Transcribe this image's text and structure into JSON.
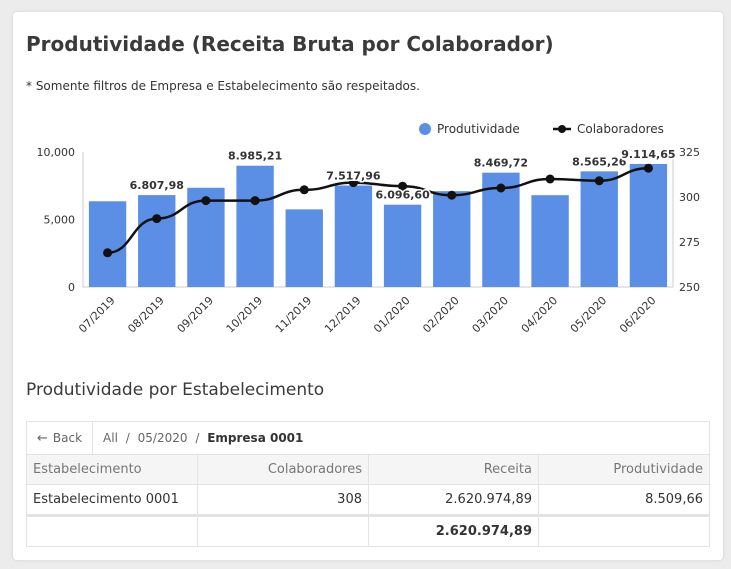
{
  "card": {
    "title": "Produtividade (Receita Bruta por Colaborador)",
    "note": "* Somente filtros de Empresa e Estabelecimento são respeitados."
  },
  "colors": {
    "bar": "#5B8FE6",
    "line": "#111111",
    "grid": "#e6e6e6",
    "axis": "#333333"
  },
  "chart_data": {
    "type": "bar",
    "categories": [
      "07/2019",
      "08/2019",
      "09/2019",
      "10/2019",
      "11/2019",
      "12/2019",
      "01/2020",
      "02/2020",
      "03/2020",
      "04/2020",
      "05/2020",
      "06/2020"
    ],
    "series": [
      {
        "name": "Produtividade",
        "type": "bar",
        "axis": "left",
        "values": [
          6350,
          6807.98,
          7350,
          8985.21,
          5750,
          7517.96,
          6096.6,
          7100,
          8469.72,
          6800,
          8565.26,
          9114.65
        ],
        "data_labels": [
          null,
          "6.807,98",
          null,
          "8.985,21",
          null,
          "7.517,96",
          "6.096,60",
          null,
          "8.469,72",
          null,
          "8.565,26",
          "9.114,65"
        ]
      },
      {
        "name": "Colaboradores",
        "type": "line",
        "axis": "right",
        "values": [
          269,
          288,
          298,
          298,
          304,
          308,
          306,
          301,
          305,
          310,
          309,
          316
        ]
      }
    ],
    "y_left": {
      "min": 0,
      "max": 10000,
      "ticks": [
        0,
        5000,
        10000
      ],
      "tick_labels": [
        "0",
        "5,000",
        "10,000"
      ]
    },
    "y_right": {
      "min": 250,
      "max": 325,
      "ticks": [
        250,
        275,
        300,
        325
      ],
      "tick_labels": [
        "250",
        "275",
        "300",
        "325"
      ]
    },
    "legend_position": "top-right",
    "grid": true
  },
  "table": {
    "title": "Produtividade por Estabelecimento",
    "back_label": "Back",
    "breadcrumb": {
      "root": "All",
      "period": "05/2020",
      "current": "Empresa 0001"
    },
    "headers": [
      "Estabelecimento",
      "Colaboradores",
      "Receita",
      "Produtividade"
    ],
    "rows": [
      [
        "Estabelecimento 0001",
        "308",
        "2.620.974,89",
        "8.509,66"
      ]
    ],
    "total": [
      "",
      "",
      "2.620.974,89",
      ""
    ]
  }
}
